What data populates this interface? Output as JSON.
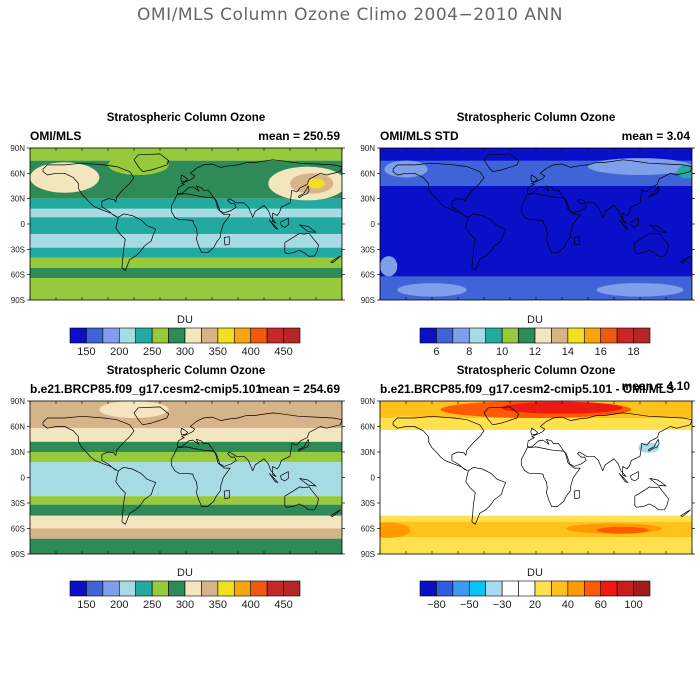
{
  "figure_title": "OMI/MLS Column Ozone Climo 2004−2010 ANN",
  "lat_labels": [
    "90N",
    "60N",
    "30N",
    "0",
    "30S",
    "60S",
    "90S"
  ],
  "panels": [
    {
      "title": "Stratospheric Column Ozone",
      "left_label": "OMI/MLS",
      "right_label": "mean = 250.59",
      "colorbar": {
        "unit": "DU",
        "colors": [
          "#0a10c8",
          "#3e64d8",
          "#7f9fea",
          "#a6dbe4",
          "#22aaa0",
          "#96c93b",
          "#2e8b57",
          "#f3e6bf",
          "#d7b38a",
          "#f0e020",
          "#f5a60d",
          "#ee5a12",
          "#c42828",
          "#b52626"
        ],
        "labels": [
          "150",
          "200",
          "250",
          "300",
          "350",
          "400",
          "450"
        ]
      },
      "map_bands": [
        {
          "lat_top": 90,
          "lat_bottom": 75,
          "color": "#96c93b"
        },
        {
          "lat_top": 75,
          "lat_bottom": 30,
          "color": "#2e8b57"
        },
        {
          "lat_top": 30,
          "lat_bottom": 18,
          "color": "#22aaa0"
        },
        {
          "lat_top": 18,
          "lat_bottom": 8,
          "color": "#a6dbe4"
        },
        {
          "lat_top": 8,
          "lat_bottom": -12,
          "color": "#22aaa0"
        },
        {
          "lat_top": -12,
          "lat_bottom": -28,
          "color": "#a6dbe4"
        },
        {
          "lat_top": -28,
          "lat_bottom": -40,
          "color": "#22aaa0"
        },
        {
          "lat_top": -40,
          "lat_bottom": -52,
          "color": "#96c93b"
        },
        {
          "lat_top": -52,
          "lat_bottom": -64,
          "color": "#2e8b57"
        },
        {
          "lat_top": -64,
          "lat_bottom": -90,
          "color": "#96c93b"
        }
      ],
      "map_blobs": [
        {
          "lon": -140,
          "lat": 55,
          "rlon": 40,
          "rlat": 18,
          "color": "#f3e6bf"
        },
        {
          "lon": -55,
          "lat": 70,
          "rlon": 35,
          "rlat": 12,
          "color": "#96c93b"
        },
        {
          "lon": 140,
          "lat": 48,
          "rlon": 45,
          "rlat": 20,
          "color": "#f3e6bf"
        },
        {
          "lon": 145,
          "lat": 48,
          "rlon": 25,
          "rlat": 12,
          "color": "#d7b38a"
        },
        {
          "lon": 150,
          "lat": 48,
          "rlon": 10,
          "rlat": 6,
          "color": "#f0e020"
        }
      ]
    },
    {
      "title": "Stratospheric Column Ozone",
      "left_label": "OMI/MLS STD",
      "right_label": "mean =   3.04",
      "colorbar": {
        "unit": "DU",
        "colors": [
          "#0a10c8",
          "#3e64d8",
          "#7f9fea",
          "#a6dbe4",
          "#22aaa0",
          "#96c93b",
          "#2e8b57",
          "#f3e6bf",
          "#d7b38a",
          "#f0e020",
          "#f5a60d",
          "#ee5a12",
          "#c42828",
          "#b52626"
        ],
        "labels": [
          "6",
          "8",
          "10",
          "12",
          "14",
          "16",
          "18"
        ]
      },
      "map_bands": [
        {
          "lat_top": 90,
          "lat_bottom": -90,
          "color": "#0a10c8"
        },
        {
          "lat_top": 75,
          "lat_bottom": 45,
          "color": "#3e64d8"
        },
        {
          "lat_top": -62,
          "lat_bottom": -90,
          "color": "#3e64d8"
        }
      ],
      "map_blobs": [
        {
          "lon": -150,
          "lat": 65,
          "rlon": 25,
          "rlat": 10,
          "color": "#7f9fea"
        },
        {
          "lon": 120,
          "lat": 68,
          "rlon": 60,
          "rlat": 10,
          "color": "#7f9fea"
        },
        {
          "lon": 175,
          "lat": 62,
          "rlon": 12,
          "rlat": 8,
          "color": "#22aaa0"
        },
        {
          "lon": -170,
          "lat": -50,
          "rlon": 10,
          "rlat": 12,
          "color": "#7f9fea"
        },
        {
          "lon": -120,
          "lat": -78,
          "rlon": 40,
          "rlat": 8,
          "color": "#7f9fea"
        },
        {
          "lon": 120,
          "lat": -78,
          "rlon": 50,
          "rlat": 8,
          "color": "#7f9fea"
        }
      ]
    },
    {
      "title": "Stratospheric Column Ozone",
      "left_label": "b.e21.BRCP85.f09_g17.cesm2-cmip5.101",
      "right_label": "mean = 254.69",
      "colorbar": {
        "unit": "DU",
        "colors": [
          "#0a10c8",
          "#3e64d8",
          "#7f9fea",
          "#a6dbe4",
          "#22aaa0",
          "#96c93b",
          "#2e8b57",
          "#f3e6bf",
          "#d7b38a",
          "#f0e020",
          "#f5a60d",
          "#ee5a12",
          "#c42828",
          "#b52626"
        ],
        "labels": [
          "150",
          "200",
          "250",
          "300",
          "350",
          "400",
          "450"
        ]
      },
      "map_bands": [
        {
          "lat_top": 90,
          "lat_bottom": 58,
          "color": "#d7b38a"
        },
        {
          "lat_top": 58,
          "lat_bottom": 42,
          "color": "#f3e6bf"
        },
        {
          "lat_top": 42,
          "lat_bottom": 30,
          "color": "#2e8b57"
        },
        {
          "lat_top": 30,
          "lat_bottom": 18,
          "color": "#96c93b"
        },
        {
          "lat_top": 18,
          "lat_bottom": -22,
          "color": "#a6dbe4"
        },
        {
          "lat_top": -22,
          "lat_bottom": -32,
          "color": "#96c93b"
        },
        {
          "lat_top": -32,
          "lat_bottom": -45,
          "color": "#2e8b57"
        },
        {
          "lat_top": -45,
          "lat_bottom": -60,
          "color": "#f3e6bf"
        },
        {
          "lat_top": -60,
          "lat_bottom": -72,
          "color": "#d7b38a"
        },
        {
          "lat_top": -72,
          "lat_bottom": -90,
          "color": "#2e8b57"
        }
      ],
      "map_blobs": [
        {
          "lon": -60,
          "lat": 80,
          "rlon": 40,
          "rlat": 10,
          "color": "#f3e6bf"
        }
      ]
    },
    {
      "title": "Stratospheric Column Ozone",
      "left_label": "b.e21.BRCP85.f09_g17.cesm2-cmip5.101 - OMI/MLS",
      "right_label": "mean =   4.10",
      "colorbar": {
        "unit": "DU",
        "colors": [
          "#0a10c8",
          "#2f5de0",
          "#3a9bf0",
          "#05c4f2",
          "#a6dcf0",
          "#ffffff",
          "#ffffff",
          "#ffe14d",
          "#ffc21a",
          "#ff9a00",
          "#ff5a00",
          "#ee1a12",
          "#c81e1e",
          "#a11d1d"
        ],
        "labels": [
          "−80",
          "−50",
          "−30",
          "20",
          "40",
          "60",
          "100"
        ]
      },
      "map_bands": [
        {
          "lat_top": 90,
          "lat_bottom": -90,
          "color": "#ffffff"
        },
        {
          "lat_top": 90,
          "lat_bottom": 70,
          "color": "#ffc21a"
        },
        {
          "lat_top": 70,
          "lat_bottom": 56,
          "color": "#ffe14d"
        },
        {
          "lat_top": -45,
          "lat_bottom": -52,
          "color": "#ffe14d"
        },
        {
          "lat_top": -52,
          "lat_bottom": -70,
          "color": "#ffc21a"
        },
        {
          "lat_top": -70,
          "lat_bottom": -90,
          "color": "#ffe14d"
        }
      ],
      "map_blobs": [
        {
          "lon": 0,
          "lat": 80,
          "rlon": 110,
          "rlat": 10,
          "color": "#ff5a00"
        },
        {
          "lon": 30,
          "lat": 82,
          "rlon": 70,
          "rlat": 7,
          "color": "#ee1a12"
        },
        {
          "lon": -150,
          "lat": 66,
          "rlon": 20,
          "rlat": 6,
          "color": "#ffe14d"
        },
        {
          "lon": 130,
          "lat": 35,
          "rlon": 12,
          "rlat": 6,
          "color": "#a6dcf0"
        },
        {
          "lon": -170,
          "lat": -62,
          "rlon": 25,
          "rlat": 9,
          "color": "#ff9a00"
        },
        {
          "lon": 90,
          "lat": -60,
          "rlon": 55,
          "rlat": 6,
          "color": "#ff9a00"
        },
        {
          "lon": 100,
          "lat": -62,
          "rlon": 30,
          "rlat": 4,
          "color": "#ff5a00"
        }
      ]
    }
  ]
}
